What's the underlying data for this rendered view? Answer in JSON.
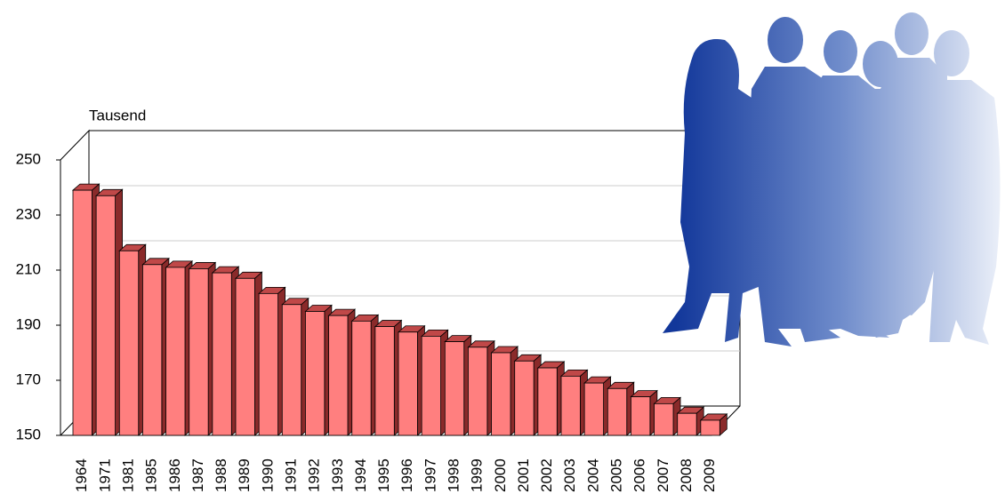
{
  "chart_data": {
    "type": "bar3d",
    "axis_label": "Tausend",
    "categories": [
      "1964",
      "1971",
      "1981",
      "1985",
      "1986",
      "1987",
      "1988",
      "1989",
      "1990",
      "1991",
      "1992",
      "1993",
      "1994",
      "1995",
      "1996",
      "1997",
      "1998",
      "1999",
      "2000",
      "2001",
      "2002",
      "2003",
      "2004",
      "2005",
      "2006",
      "2007",
      "2008",
      "2009"
    ],
    "values": [
      239,
      237,
      217,
      212,
      211,
      210.5,
      209,
      207,
      201.5,
      197.5,
      195,
      193.5,
      191.5,
      189.5,
      187.5,
      186,
      184,
      182,
      180,
      177,
      174.5,
      171.5,
      169,
      167,
      164,
      161.5,
      158,
      155.5
    ],
    "color": "#ff7f7f",
    "ylim": [
      150,
      250
    ],
    "yticks": [
      150,
      170,
      190,
      210,
      230,
      250
    ],
    "grid": true
  }
}
